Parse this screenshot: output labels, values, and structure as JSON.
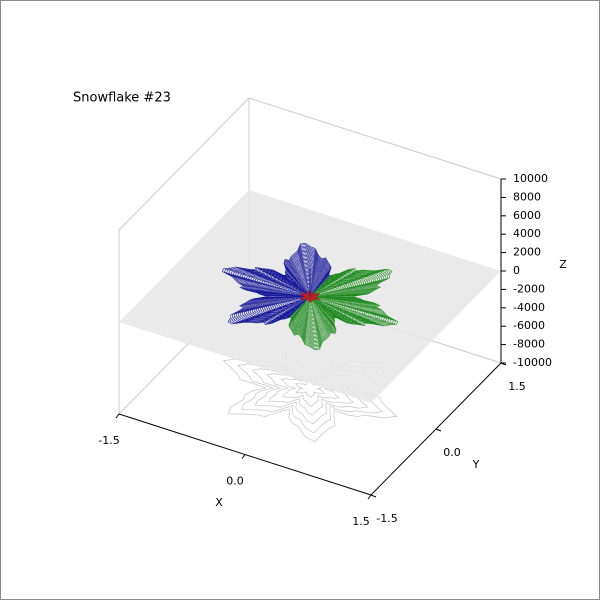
{
  "chart_data": {
    "type": "surface3d",
    "title": "Snowflake #23",
    "xlabel": "X",
    "ylabel": "Y",
    "zlabel": "Z",
    "xlim": [
      -1.5,
      1.5
    ],
    "xticks": [
      -1.5,
      {
        "value": 0,
        "label": "0.0"
      },
      1.5
    ],
    "ylim": [
      -1.5,
      1.5
    ],
    "yticks": [
      -1.5,
      {
        "value": 0,
        "label": "0.0"
      },
      1.5
    ],
    "zlim": [
      -10000,
      10000
    ],
    "zticks": [
      -10000,
      -8000,
      -6000,
      -4000,
      -2000,
      0,
      2000,
      4000,
      6000,
      8000,
      10000
    ],
    "colors": [
      "#1a1a9a",
      "#1f8a1f",
      "#b22222"
    ]
  }
}
